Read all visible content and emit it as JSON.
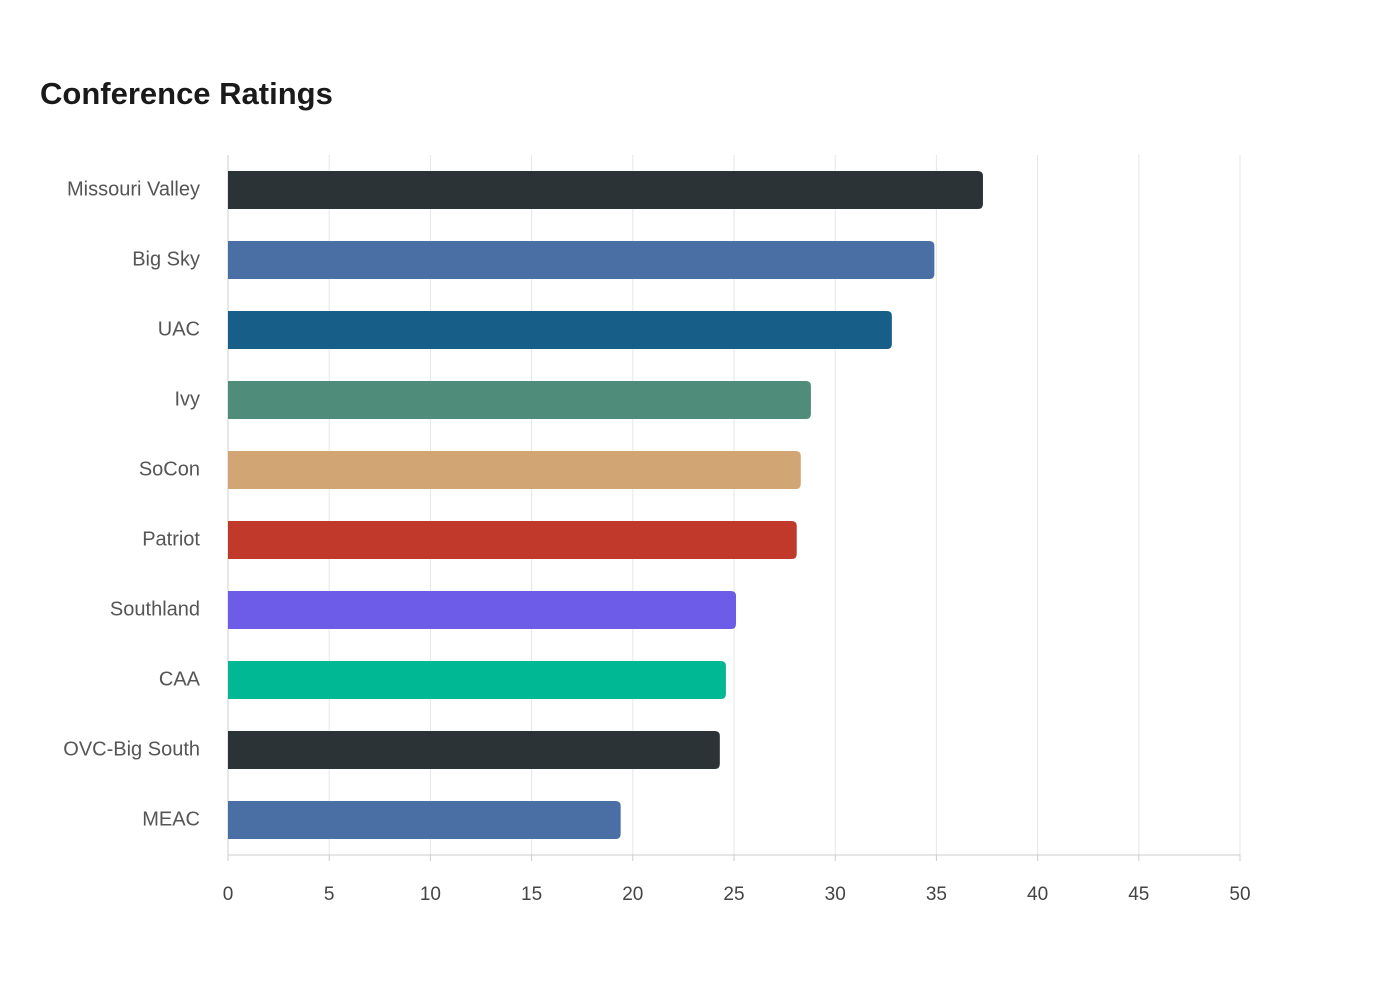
{
  "chart_data": {
    "type": "bar",
    "orientation": "horizontal",
    "title": "Conference Ratings",
    "categories": [
      "Missouri Valley",
      "Big Sky",
      "UAC",
      "Ivy",
      "SoCon",
      "Patriot",
      "Southland",
      "CAA",
      "OVC-Big South",
      "MEAC"
    ],
    "values": [
      37.3,
      34.9,
      32.8,
      28.8,
      28.3,
      28.1,
      25.1,
      24.6,
      24.3,
      19.4
    ],
    "colors": [
      "#2c3336",
      "#4a6fa5",
      "#175f88",
      "#4f8c7a",
      "#d2a574",
      "#c0392b",
      "#6c5ce7",
      "#00b894",
      "#2c3336",
      "#4a6fa5"
    ],
    "xlim": [
      0,
      50
    ],
    "xticks": [
      0,
      5,
      10,
      15,
      20,
      25,
      30,
      35,
      40,
      45,
      50
    ],
    "grid": true
  }
}
